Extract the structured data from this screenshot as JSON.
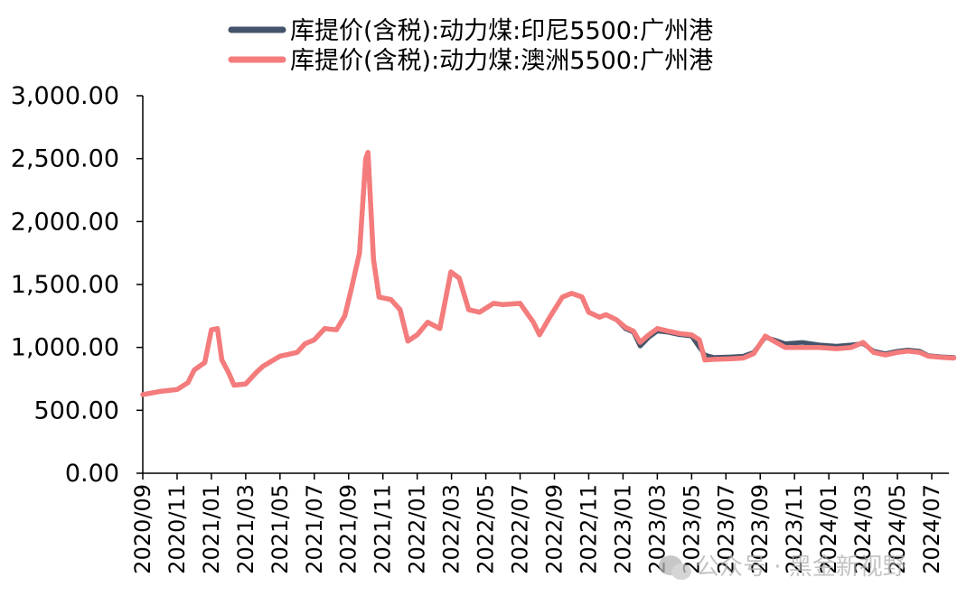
{
  "chart_data": {
    "type": "line",
    "title": "",
    "xlabel": "",
    "ylabel": "",
    "ylim": [
      0,
      3000
    ],
    "y_ticks": [
      0,
      500,
      1000,
      1500,
      2000,
      2500,
      3000
    ],
    "y_tick_labels": [
      "0.00",
      "500.00",
      "1,000.00",
      "1,500.00",
      "2,000.00",
      "2,500.00",
      "3,000.00"
    ],
    "x_ticks": [
      "2020/09",
      "2020/11",
      "2021/01",
      "2021/03",
      "2021/05",
      "2021/07",
      "2021/09",
      "2021/11",
      "2022/01",
      "2022/03",
      "2022/05",
      "2022/07",
      "2022/09",
      "2022/11",
      "2023/01",
      "2023/03",
      "2023/05",
      "2023/07",
      "2023/09",
      "2023/11",
      "2024/01",
      "2024/03",
      "2024/05",
      "2024/07"
    ],
    "x_range": [
      "2020/09",
      "2024/08"
    ],
    "grid": false,
    "legend_position": "top-center",
    "series": [
      {
        "name": "库提价(含税):动力煤:印尼5500:广州港",
        "color": "#44546a",
        "points": [
          [
            "2020-09-01",
            625
          ],
          [
            "2020-10-01",
            650
          ],
          [
            "2020-11-01",
            665
          ],
          [
            "2020-11-20",
            720
          ],
          [
            "2020-12-01",
            820
          ],
          [
            "2020-12-20",
            880
          ],
          [
            "2021-01-01",
            1140
          ],
          [
            "2021-01-12",
            1150
          ],
          [
            "2021-01-20",
            900
          ],
          [
            "2021-02-01",
            800
          ],
          [
            "2021-02-10",
            700
          ],
          [
            "2021-03-01",
            710
          ],
          [
            "2021-03-20",
            800
          ],
          [
            "2021-04-01",
            850
          ],
          [
            "2021-05-01",
            930
          ],
          [
            "2021-06-01",
            960
          ],
          [
            "2021-06-15",
            1030
          ],
          [
            "2021-07-01",
            1060
          ],
          [
            "2021-07-20",
            1150
          ],
          [
            "2021-08-10",
            1140
          ],
          [
            "2021-08-25",
            1250
          ],
          [
            "2021-09-05",
            1450
          ],
          [
            "2021-09-20",
            1750
          ],
          [
            "2021-10-01",
            2500
          ],
          [
            "2021-10-05",
            2550
          ],
          [
            "2021-10-15",
            1700
          ],
          [
            "2021-10-25",
            1400
          ],
          [
            "2021-11-15",
            1380
          ],
          [
            "2021-12-01",
            1300
          ],
          [
            "2021-12-15",
            1050
          ],
          [
            "2022-01-01",
            1100
          ],
          [
            "2022-01-20",
            1200
          ],
          [
            "2022-02-10",
            1150
          ],
          [
            "2022-02-28",
            1600
          ],
          [
            "2022-03-15",
            1550
          ],
          [
            "2022-04-01",
            1300
          ],
          [
            "2022-04-20",
            1280
          ],
          [
            "2022-05-15",
            1350
          ],
          [
            "2022-06-01",
            1340
          ],
          [
            "2022-07-01",
            1350
          ],
          [
            "2022-07-25",
            1200
          ],
          [
            "2022-08-05",
            1100
          ],
          [
            "2022-08-25",
            1250
          ],
          [
            "2022-09-15",
            1400
          ],
          [
            "2022-10-01",
            1430
          ],
          [
            "2022-10-20",
            1400
          ],
          [
            "2022-11-01",
            1280
          ],
          [
            "2022-11-20",
            1240
          ],
          [
            "2022-12-01",
            1260
          ],
          [
            "2022-12-20",
            1220
          ],
          [
            "2023-01-05",
            1150
          ],
          [
            "2023-01-20",
            1120
          ],
          [
            "2023-02-01",
            1010
          ],
          [
            "2023-02-15",
            1080
          ],
          [
            "2023-03-01",
            1130
          ],
          [
            "2023-03-20",
            1120
          ],
          [
            "2023-04-10",
            1100
          ],
          [
            "2023-05-01",
            1090
          ],
          [
            "2023-05-15",
            1000
          ],
          [
            "2023-05-25",
            940
          ],
          [
            "2023-06-10",
            920
          ],
          [
            "2023-07-10",
            925
          ],
          [
            "2023-08-01",
            930
          ],
          [
            "2023-08-20",
            960
          ],
          [
            "2023-09-10",
            1080
          ],
          [
            "2023-09-25",
            1060
          ],
          [
            "2023-10-15",
            1030
          ],
          [
            "2023-11-15",
            1040
          ],
          [
            "2023-12-15",
            1020
          ],
          [
            "2024-01-15",
            1010
          ],
          [
            "2024-02-10",
            1020
          ],
          [
            "2024-03-01",
            1030
          ],
          [
            "2024-03-20",
            970
          ],
          [
            "2024-04-10",
            950
          ],
          [
            "2024-05-01",
            970
          ],
          [
            "2024-05-20",
            980
          ],
          [
            "2024-06-10",
            970
          ],
          [
            "2024-06-25",
            935
          ],
          [
            "2024-07-20",
            925
          ],
          [
            "2024-08-10",
            920
          ]
        ]
      },
      {
        "name": "库提价(含税):动力煤:澳洲5500:广州港",
        "color": "#f47c7c",
        "points": [
          [
            "2020-09-01",
            625
          ],
          [
            "2020-10-01",
            650
          ],
          [
            "2020-11-01",
            665
          ],
          [
            "2020-11-20",
            720
          ],
          [
            "2020-12-01",
            820
          ],
          [
            "2020-12-20",
            880
          ],
          [
            "2021-01-01",
            1140
          ],
          [
            "2021-01-12",
            1150
          ],
          [
            "2021-01-20",
            900
          ],
          [
            "2021-02-01",
            800
          ],
          [
            "2021-02-10",
            700
          ],
          [
            "2021-03-01",
            710
          ],
          [
            "2021-03-20",
            800
          ],
          [
            "2021-04-01",
            850
          ],
          [
            "2021-05-01",
            930
          ],
          [
            "2021-06-01",
            960
          ],
          [
            "2021-06-15",
            1030
          ],
          [
            "2021-07-01",
            1060
          ],
          [
            "2021-07-20",
            1150
          ],
          [
            "2021-08-10",
            1140
          ],
          [
            "2021-08-25",
            1250
          ],
          [
            "2021-09-05",
            1450
          ],
          [
            "2021-09-20",
            1750
          ],
          [
            "2021-10-01",
            2500
          ],
          [
            "2021-10-05",
            2550
          ],
          [
            "2021-10-15",
            1700
          ],
          [
            "2021-10-25",
            1400
          ],
          [
            "2021-11-15",
            1380
          ],
          [
            "2021-12-01",
            1300
          ],
          [
            "2021-12-15",
            1050
          ],
          [
            "2022-01-01",
            1100
          ],
          [
            "2022-01-20",
            1200
          ],
          [
            "2022-02-10",
            1150
          ],
          [
            "2022-02-28",
            1600
          ],
          [
            "2022-03-15",
            1550
          ],
          [
            "2022-04-01",
            1300
          ],
          [
            "2022-04-20",
            1280
          ],
          [
            "2022-05-15",
            1350
          ],
          [
            "2022-06-01",
            1340
          ],
          [
            "2022-07-01",
            1350
          ],
          [
            "2022-07-25",
            1200
          ],
          [
            "2022-08-05",
            1100
          ],
          [
            "2022-08-25",
            1250
          ],
          [
            "2022-09-15",
            1400
          ],
          [
            "2022-10-01",
            1430
          ],
          [
            "2022-10-20",
            1400
          ],
          [
            "2022-11-01",
            1280
          ],
          [
            "2022-11-20",
            1240
          ],
          [
            "2022-12-01",
            1260
          ],
          [
            "2022-12-20",
            1220
          ],
          [
            "2023-01-05",
            1160
          ],
          [
            "2023-01-20",
            1130
          ],
          [
            "2023-02-01",
            1040
          ],
          [
            "2023-02-15",
            1100
          ],
          [
            "2023-03-01",
            1150
          ],
          [
            "2023-03-20",
            1130
          ],
          [
            "2023-04-10",
            1110
          ],
          [
            "2023-05-01",
            1100
          ],
          [
            "2023-05-15",
            1060
          ],
          [
            "2023-05-25",
            900
          ],
          [
            "2023-06-10",
            905
          ],
          [
            "2023-07-10",
            910
          ],
          [
            "2023-08-01",
            915
          ],
          [
            "2023-08-20",
            950
          ],
          [
            "2023-09-10",
            1090
          ],
          [
            "2023-09-25",
            1050
          ],
          [
            "2023-10-15",
            1000
          ],
          [
            "2023-11-15",
            1000
          ],
          [
            "2023-12-15",
            1000
          ],
          [
            "2024-01-15",
            990
          ],
          [
            "2024-02-10",
            1000
          ],
          [
            "2024-03-01",
            1040
          ],
          [
            "2024-03-20",
            960
          ],
          [
            "2024-04-10",
            940
          ],
          [
            "2024-05-01",
            960
          ],
          [
            "2024-05-20",
            970
          ],
          [
            "2024-06-10",
            960
          ],
          [
            "2024-06-25",
            930
          ],
          [
            "2024-07-20",
            920
          ],
          [
            "2024-08-10",
            915
          ]
        ]
      }
    ]
  },
  "watermark": {
    "text": "公众号 · 黑金新视野",
    "icon": "wechat-icon"
  }
}
